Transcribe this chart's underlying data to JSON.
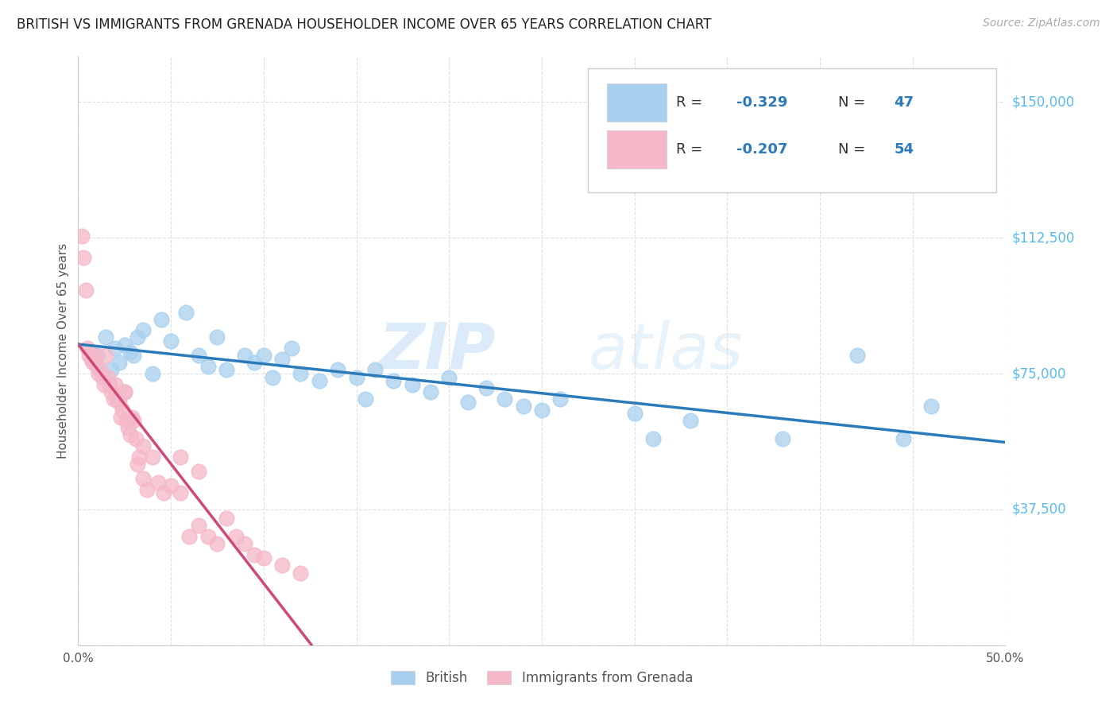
{
  "title": "BRITISH VS IMMIGRANTS FROM GRENADA HOUSEHOLDER INCOME OVER 65 YEARS CORRELATION CHART",
  "source": "Source: ZipAtlas.com",
  "ylabel": "Householder Income Over 65 years",
  "xlim": [
    0.0,
    0.5
  ],
  "ylim": [
    0,
    162500
  ],
  "yticks": [
    0,
    37500,
    75000,
    112500,
    150000
  ],
  "ytick_labels": [
    "",
    "$37,500",
    "$75,000",
    "$112,500",
    "$150,000"
  ],
  "xticks": [
    0.0,
    0.05,
    0.1,
    0.15,
    0.2,
    0.25,
    0.3,
    0.35,
    0.4,
    0.45,
    0.5
  ],
  "xtick_labels": [
    "0.0%",
    "",
    "",
    "",
    "",
    "",
    "",
    "",
    "",
    "",
    "50.0%"
  ],
  "blue_color": "#a8d0ee",
  "pink_color": "#f5b8c8",
  "blue_line_color": "#2b7bba",
  "pink_line_color": "#d04878",
  "pink_dash_color": "#f0a0bc",
  "blue_scatter_x": [
    0.01,
    0.015,
    0.018,
    0.02,
    0.022,
    0.025,
    0.028,
    0.03,
    0.032,
    0.035,
    0.04,
    0.045,
    0.05,
    0.058,
    0.065,
    0.07,
    0.075,
    0.08,
    0.09,
    0.095,
    0.1,
    0.105,
    0.11,
    0.115,
    0.12,
    0.13,
    0.14,
    0.15,
    0.155,
    0.16,
    0.17,
    0.18,
    0.19,
    0.2,
    0.21,
    0.22,
    0.23,
    0.24,
    0.25,
    0.26,
    0.3,
    0.31,
    0.33,
    0.38,
    0.42,
    0.445,
    0.46
  ],
  "blue_scatter_y": [
    80000,
    85000,
    76000,
    82000,
    78000,
    83000,
    81000,
    80000,
    85000,
    87000,
    75000,
    90000,
    84000,
    92000,
    80000,
    77000,
    85000,
    76000,
    80000,
    78000,
    80000,
    74000,
    79000,
    82000,
    75000,
    73000,
    76000,
    74000,
    68000,
    76000,
    73000,
    72000,
    70000,
    74000,
    67000,
    71000,
    68000,
    66000,
    65000,
    68000,
    64000,
    57000,
    62000,
    57000,
    80000,
    57000,
    66000
  ],
  "pink_scatter_x": [
    0.002,
    0.003,
    0.004,
    0.005,
    0.006,
    0.007,
    0.008,
    0.009,
    0.01,
    0.011,
    0.012,
    0.013,
    0.014,
    0.015,
    0.016,
    0.017,
    0.018,
    0.019,
    0.02,
    0.021,
    0.022,
    0.023,
    0.024,
    0.025,
    0.026,
    0.027,
    0.028,
    0.029,
    0.03,
    0.031,
    0.032,
    0.033,
    0.035,
    0.037,
    0.04,
    0.043,
    0.046,
    0.05,
    0.055,
    0.06,
    0.065,
    0.07,
    0.075,
    0.08,
    0.085,
    0.09,
    0.095,
    0.1,
    0.11,
    0.12,
    0.025,
    0.035,
    0.055,
    0.065
  ],
  "pink_scatter_y": [
    113000,
    107000,
    98000,
    82000,
    80000,
    79000,
    78000,
    80000,
    77000,
    75000,
    76000,
    74000,
    72000,
    80000,
    74000,
    72000,
    70000,
    68000,
    72000,
    68000,
    67000,
    63000,
    65000,
    70000,
    62000,
    60000,
    58000,
    63000,
    62000,
    57000,
    50000,
    52000,
    46000,
    43000,
    52000,
    45000,
    42000,
    44000,
    42000,
    30000,
    33000,
    30000,
    28000,
    35000,
    30000,
    28000,
    25000,
    24000,
    22000,
    20000,
    70000,
    55000,
    52000,
    48000
  ],
  "watermark_zip": "ZIP",
  "watermark_atlas": "atlas",
  "background_color": "#ffffff",
  "grid_color": "#e0e0e0",
  "r_value_color": "#2b7bba",
  "n_value_color": "#2b7bba",
  "label_color": "#555555",
  "ytick_color": "#55bbee"
}
